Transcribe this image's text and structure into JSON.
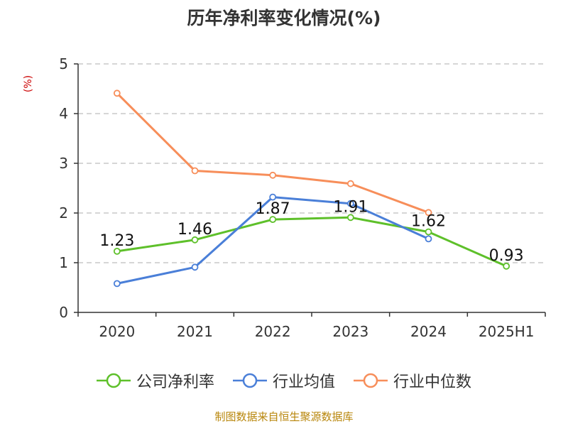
{
  "chart_data": {
    "type": "line",
    "title": "历年净利率变化情况(%)",
    "ylabel": "(%)",
    "categories": [
      "2020",
      "2021",
      "2022",
      "2023",
      "2024",
      "2025H1"
    ],
    "ylim": [
      0,
      5
    ],
    "yticks": [
      "0",
      "1",
      "2",
      "3",
      "4",
      "5"
    ],
    "grid": true,
    "legend_position": "bottom",
    "series": [
      {
        "name": "公司净利率",
        "color": "#5ec02a",
        "values": [
          1.23,
          1.46,
          1.87,
          1.91,
          1.62,
          0.93
        ],
        "labels": [
          "1.23",
          "1.46",
          "1.87",
          "1.91",
          "1.62",
          "0.93"
        ]
      },
      {
        "name": "行业均值",
        "color": "#4a7fd8",
        "values": [
          0.58,
          0.91,
          2.32,
          2.19,
          1.48,
          null
        ]
      },
      {
        "name": "行业中位数",
        "color": "#f78e5a",
        "values": [
          4.41,
          2.85,
          2.76,
          2.59,
          2.01,
          null
        ]
      }
    ]
  },
  "source": "制图数据来自恒生聚源数据库"
}
